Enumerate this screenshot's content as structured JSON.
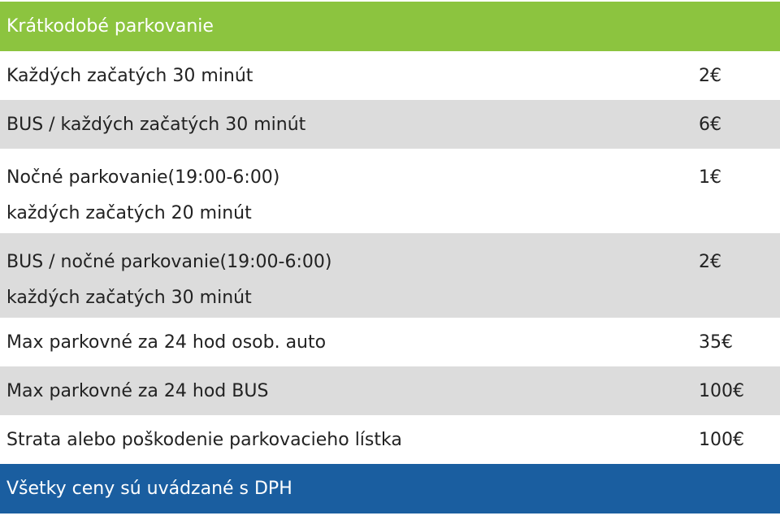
{
  "header": {
    "title": "Krátkodobé parkovanie",
    "color": "#8cc43f"
  },
  "rows": [
    {
      "label": "Každých začatých 30 minút",
      "price": "2€"
    },
    {
      "label": "BUS / každých začatých 30 minút",
      "price": "6€"
    },
    {
      "label": "Nočné parkovanie(19:00-6:00)",
      "label2": "každých začatých 20 minút",
      "price": "1€"
    },
    {
      "label": "BUS / nočné parkovanie(19:00-6:00)",
      "label2": "každých začatých 30 minút",
      "price": "2€"
    },
    {
      "label": "Max parkovné za 24 hod osob. auto",
      "price": "35€"
    },
    {
      "label": "Max parkovné za 24 hod BUS",
      "price": "100€"
    },
    {
      "label": "Strata alebo poškodenie parkovacieho lístka",
      "price": "100€"
    }
  ],
  "footer": {
    "note": "Všetky ceny sú uvádzané s DPH",
    "color": "#1a5ea0"
  }
}
